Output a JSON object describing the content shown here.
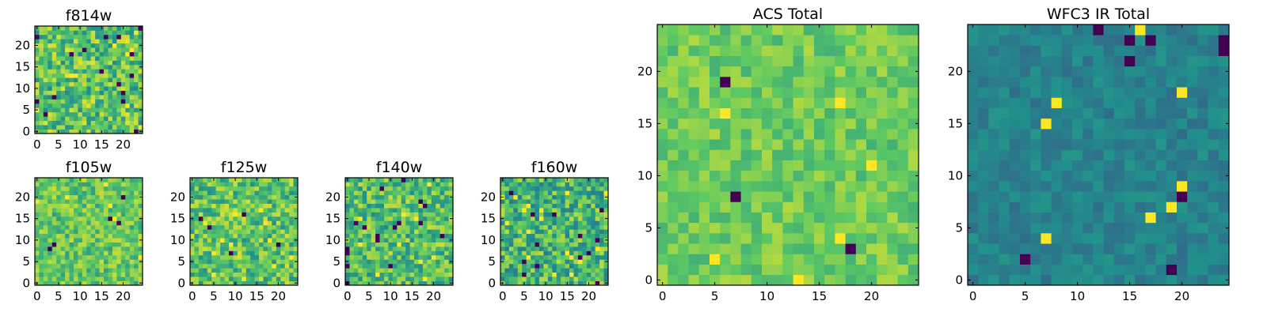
{
  "chart_data": [
    {
      "id": "f814w",
      "type": "heatmap",
      "title": "f814w",
      "grid_size": 25,
      "colormap": "viridis",
      "xticks": [
        0,
        5,
        10,
        15,
        20
      ],
      "yticks": [
        0,
        5,
        10,
        15,
        20
      ],
      "xlim": [
        0,
        25
      ],
      "ylim": [
        0,
        25
      ],
      "brightness": 0.72,
      "spread": 0.24,
      "outlier_rate": 0.04
    },
    {
      "id": "f105w",
      "type": "heatmap",
      "title": "f105w",
      "grid_size": 25,
      "colormap": "viridis",
      "xticks": [
        0,
        5,
        10,
        15,
        20
      ],
      "yticks": [
        0,
        5,
        10,
        15,
        20
      ],
      "xlim": [
        0,
        25
      ],
      "ylim": [
        0,
        25
      ],
      "brightness": 0.74,
      "spread": 0.18,
      "outlier_rate": 0.02
    },
    {
      "id": "f125w",
      "type": "heatmap",
      "title": "f125w",
      "grid_size": 25,
      "colormap": "viridis",
      "xticks": [
        0,
        5,
        10,
        15,
        20
      ],
      "yticks": [
        0,
        5,
        10,
        15,
        20
      ],
      "xlim": [
        0,
        25
      ],
      "ylim": [
        0,
        25
      ],
      "brightness": 0.72,
      "spread": 0.22,
      "outlier_rate": 0.03
    },
    {
      "id": "f140w",
      "type": "heatmap",
      "title": "f140w",
      "grid_size": 25,
      "colormap": "viridis",
      "xticks": [
        0,
        5,
        10,
        15,
        20
      ],
      "yticks": [
        0,
        5,
        10,
        15,
        20
      ],
      "xlim": [
        0,
        25
      ],
      "ylim": [
        0,
        25
      ],
      "brightness": 0.7,
      "spread": 0.22,
      "outlier_rate": 0.03
    },
    {
      "id": "f160w",
      "type": "heatmap",
      "title": "f160w",
      "grid_size": 25,
      "colormap": "viridis",
      "xticks": [
        0,
        5,
        10,
        15,
        20
      ],
      "yticks": [
        0,
        5,
        10,
        15,
        20
      ],
      "xlim": [
        0,
        25
      ],
      "ylim": [
        0,
        25
      ],
      "brightness": 0.66,
      "spread": 0.24,
      "outlier_rate": 0.05
    },
    {
      "id": "acs_total",
      "type": "heatmap",
      "title": "ACS Total",
      "grid_size": 25,
      "colormap": "viridis",
      "xticks": [
        0,
        5,
        10,
        15,
        20
      ],
      "yticks": [
        0,
        5,
        10,
        15,
        20
      ],
      "xlim": [
        0,
        25
      ],
      "ylim": [
        0,
        25
      ],
      "brightness": 0.76,
      "spread": 0.12,
      "outlier_rate": 0.02
    },
    {
      "id": "wfc3_total",
      "type": "heatmap",
      "title": "WFC3 IR Total",
      "grid_size": 25,
      "colormap": "viridis",
      "xticks": [
        0,
        5,
        10,
        15,
        20
      ],
      "yticks": [
        0,
        5,
        10,
        15,
        20
      ],
      "xlim": [
        0,
        25
      ],
      "ylim": [
        0,
        25
      ],
      "brightness": 0.44,
      "spread": 0.08,
      "outlier_rate": 0.02
    }
  ],
  "colors": {
    "viridis_stops": [
      "#440154",
      "#3b528b",
      "#21918c",
      "#5ec962",
      "#fde725"
    ],
    "frame": "#000000",
    "background": "#ffffff"
  }
}
